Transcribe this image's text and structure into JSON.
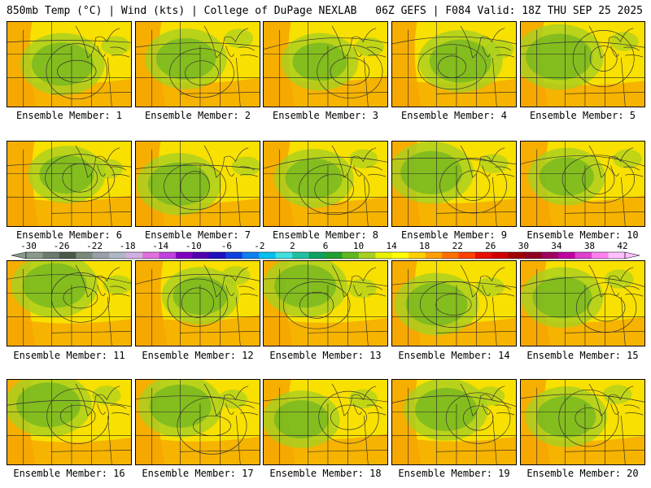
{
  "header": {
    "left": "850mb Temp (°C) | Wind (kts) | College of DuPage NEXLAB",
    "right": "06Z GEFS | F084 Valid: 18Z THU SEP 25 2025"
  },
  "panels": [
    {
      "label": "Ensemble Member: 1",
      "warmth": 0.55
    },
    {
      "label": "Ensemble Member: 2",
      "warmth": 0.6
    },
    {
      "label": "Ensemble Member: 3",
      "warmth": 0.7
    },
    {
      "label": "Ensemble Member: 4",
      "warmth": 0.55
    },
    {
      "label": "Ensemble Member: 5",
      "warmth": 0.45
    },
    {
      "label": "Ensemble Member: 6",
      "warmth": 0.7
    },
    {
      "label": "Ensemble Member: 7",
      "warmth": 0.55
    },
    {
      "label": "Ensemble Member: 8",
      "warmth": 0.65
    },
    {
      "label": "Ensemble Member: 9",
      "warmth": 0.55
    },
    {
      "label": "Ensemble Member: 10",
      "warmth": 0.7
    },
    {
      "label": "Ensemble Member: 11",
      "warmth": 0.5
    },
    {
      "label": "Ensemble Member: 12",
      "warmth": 0.7
    },
    {
      "label": "Ensemble Member: 13",
      "warmth": 0.55
    },
    {
      "label": "Ensemble Member: 14",
      "warmth": 0.55
    },
    {
      "label": "Ensemble Member: 15",
      "warmth": 0.6
    },
    {
      "label": "Ensemble Member: 16",
      "warmth": 0.5
    },
    {
      "label": "Ensemble Member: 17",
      "warmth": 0.55
    },
    {
      "label": "Ensemble Member: 18",
      "warmth": 0.7
    },
    {
      "label": "Ensemble Member: 19",
      "warmth": 0.55
    },
    {
      "label": "Ensemble Member: 20",
      "warmth": 0.6
    }
  ],
  "colorbar": {
    "labels": [
      "-30",
      "-26",
      "-22",
      "-18",
      "-14",
      "-10",
      "-6",
      "-2",
      "2",
      "6",
      "10",
      "14",
      "18",
      "22",
      "26",
      "30",
      "34",
      "38",
      "42"
    ],
    "colors": [
      "#8a9a8a",
      "#6e7a6e",
      "#4a5a4a",
      "#7a8a7a",
      "#9aa0a8",
      "#b0b8c8",
      "#d0b0e0",
      "#e070e0",
      "#c040e0",
      "#8000c0",
      "#5000b0",
      "#2010c0",
      "#1040e0",
      "#1080f0",
      "#00c0f0",
      "#40e0e0",
      "#20c0a0",
      "#10a060",
      "#20a030",
      "#60b820",
      "#a8d020",
      "#e8f000",
      "#ffff00",
      "#ffd000",
      "#ffa000",
      "#ff7000",
      "#ff4000",
      "#e81000",
      "#d00000",
      "#a00000",
      "#900020",
      "#a00060",
      "#c000a0",
      "#e040d0",
      "#ff80f0",
      "#ffc0ff"
    ]
  },
  "colors": {
    "warm": "#f6a400",
    "mid": "#f8e000",
    "cool": "#a8d020",
    "green": "#7ab820"
  }
}
